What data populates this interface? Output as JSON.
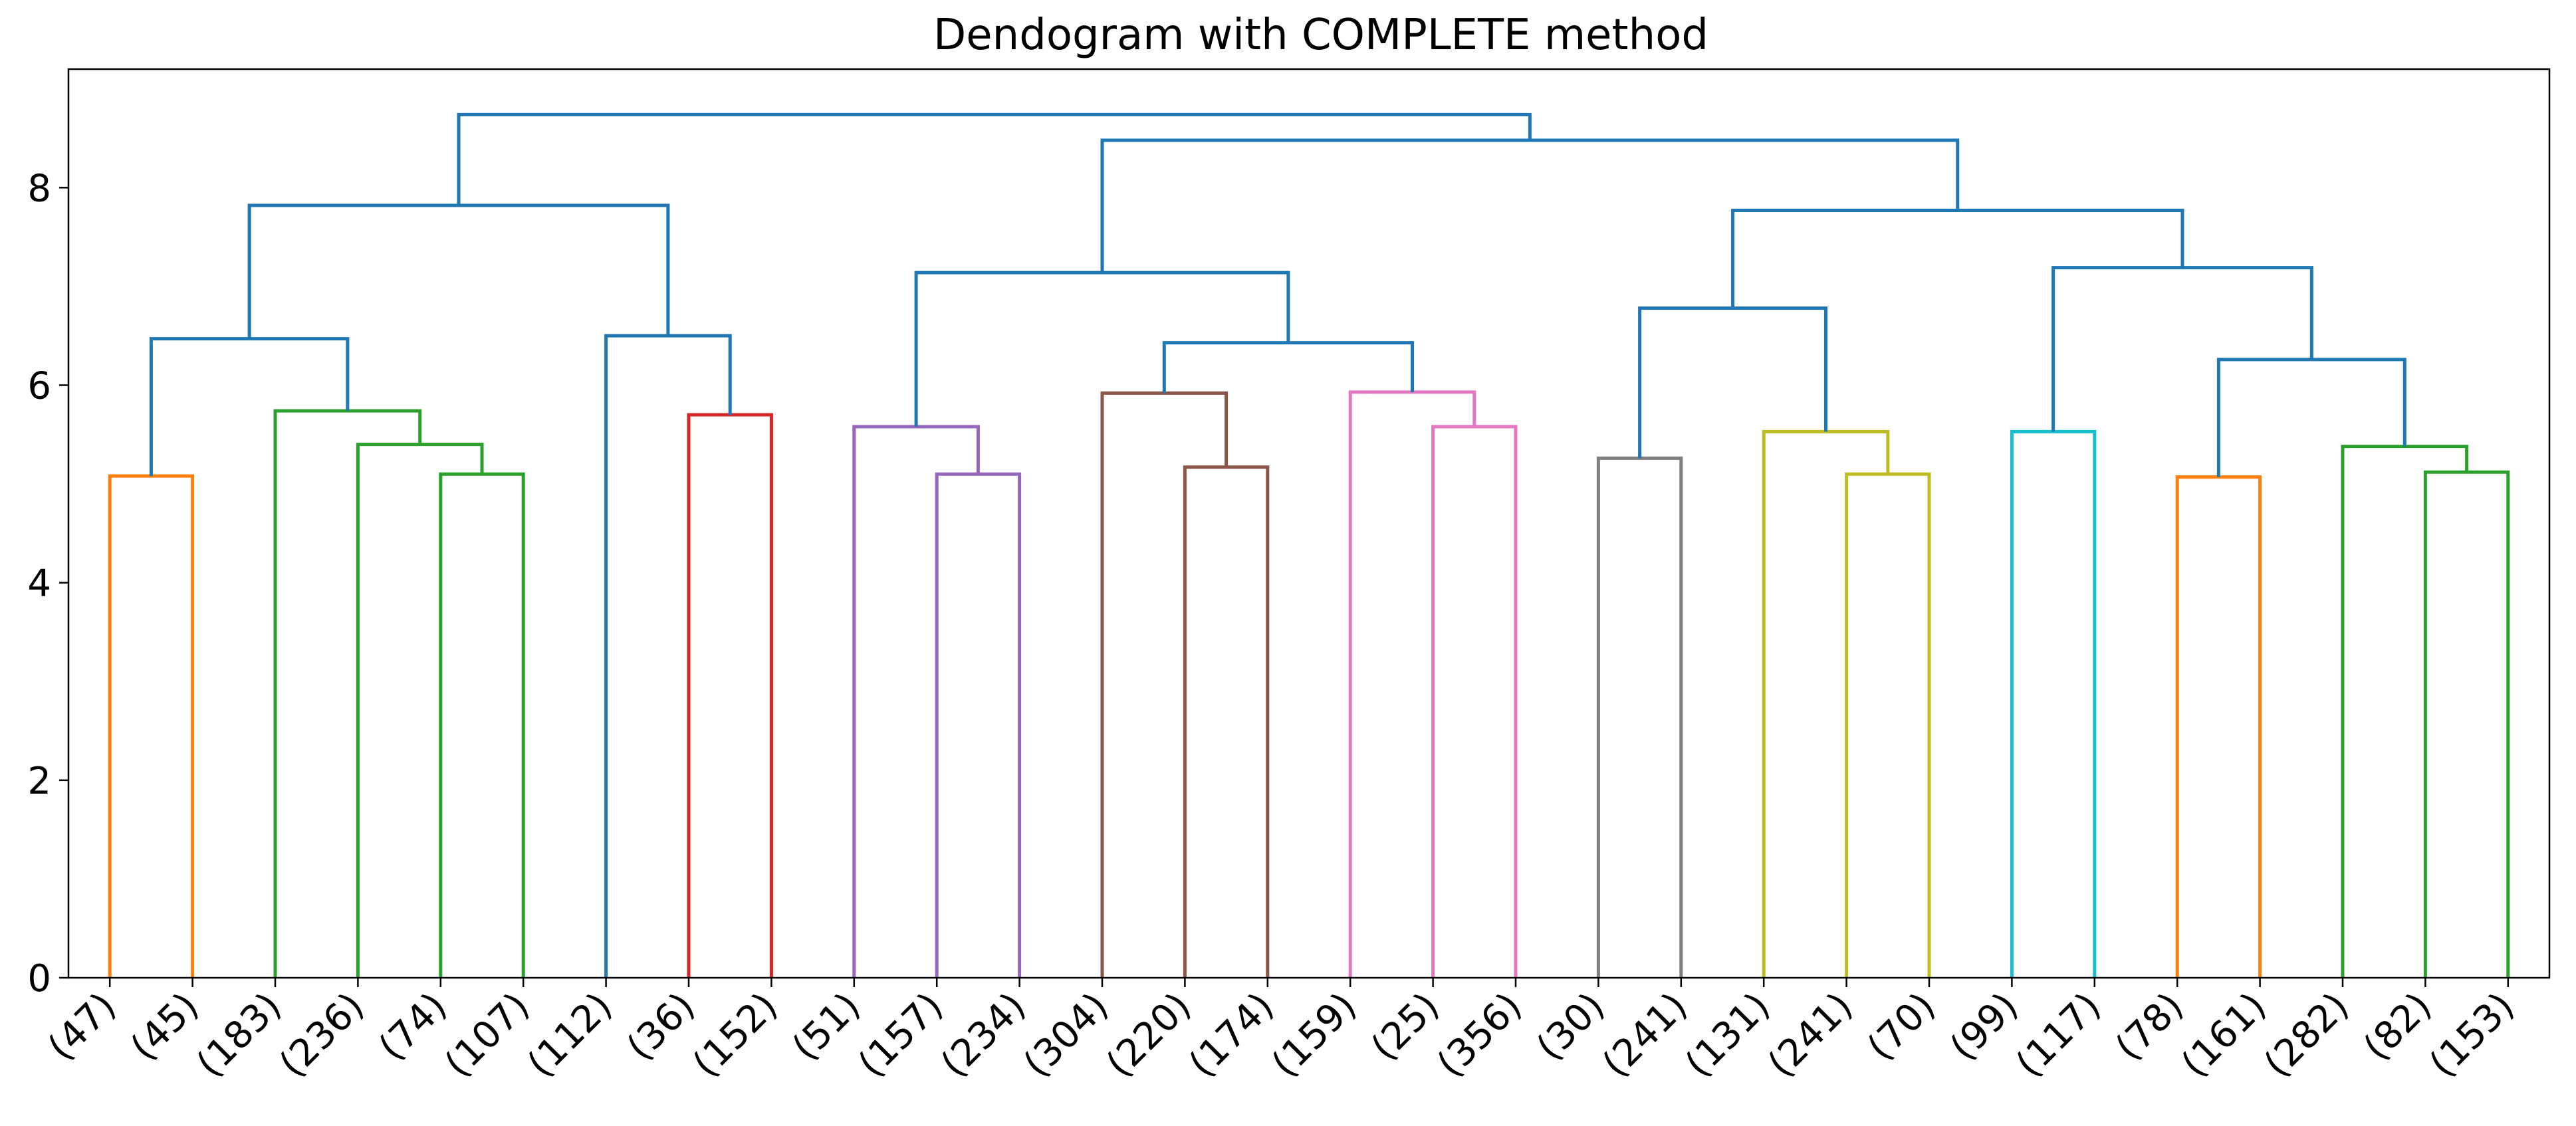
{
  "chart_data": {
    "type": "dendrogram",
    "title": "Dendogram with COMPLETE method",
    "xlabel": "",
    "ylabel": "",
    "ylim": [
      0,
      9.2
    ],
    "yticks": [
      0,
      2,
      4,
      6,
      8
    ],
    "grid": false,
    "leaf_labels": [
      "(47)",
      "(45)",
      "(183)",
      "(236)",
      "(74)",
      "(107)",
      "(112)",
      "(36)",
      "(152)",
      "(51)",
      "(157)",
      "(234)",
      "(304)",
      "(220)",
      "(174)",
      "(159)",
      "(25)",
      "(356)",
      "(30)",
      "(241)",
      "(131)",
      "(241)",
      "(70)",
      "(99)",
      "(117)",
      "(78)",
      "(161)",
      "(282)",
      "(82)",
      "(153)"
    ],
    "merges": [
      {
        "id": "m1",
        "left": 0,
        "right": 1,
        "height": 5.08,
        "color": "#ff7f0e"
      },
      {
        "id": "m2",
        "left": 4,
        "right": 5,
        "height": 5.1,
        "color": "#2ca02c"
      },
      {
        "id": "m3",
        "left": 3,
        "right": "m2",
        "height": 5.4,
        "color": "#2ca02c"
      },
      {
        "id": "m4",
        "left": 2,
        "right": "m3",
        "height": 5.74,
        "color": "#2ca02c"
      },
      {
        "id": "m5",
        "left": "m1",
        "right": "m4",
        "height": 6.47,
        "color": "#1f77b4"
      },
      {
        "id": "m6",
        "left": 7,
        "right": 8,
        "height": 5.7,
        "color": "#d62728"
      },
      {
        "id": "m7",
        "left": 6,
        "right": "m6",
        "height": 6.5,
        "color": "#1f77b4"
      },
      {
        "id": "m8",
        "left": "m5",
        "right": "m7",
        "height": 7.82,
        "color": "#1f77b4"
      },
      {
        "id": "m9",
        "left": 10,
        "right": 11,
        "height": 5.1,
        "color": "#9467bd"
      },
      {
        "id": "m10",
        "left": 9,
        "right": "m9",
        "height": 5.58,
        "color": "#9467bd"
      },
      {
        "id": "m11",
        "left": 13,
        "right": 14,
        "height": 5.17,
        "color": "#8c564b"
      },
      {
        "id": "m12",
        "left": 12,
        "right": "m11",
        "height": 5.92,
        "color": "#8c564b"
      },
      {
        "id": "m13",
        "left": 16,
        "right": 17,
        "height": 5.58,
        "color": "#e377c2"
      },
      {
        "id": "m14",
        "left": 15,
        "right": "m13",
        "height": 5.93,
        "color": "#e377c2"
      },
      {
        "id": "m15",
        "left": "m12",
        "right": "m14",
        "height": 6.43,
        "color": "#1f77b4"
      },
      {
        "id": "m16",
        "left": "m10",
        "right": "m15",
        "height": 7.14,
        "color": "#1f77b4"
      },
      {
        "id": "m17",
        "left": 18,
        "right": 19,
        "height": 5.26,
        "color": "#7f7f7f"
      },
      {
        "id": "m18",
        "left": 21,
        "right": 22,
        "height": 5.1,
        "color": "#bcbd22"
      },
      {
        "id": "m19",
        "left": 20,
        "right": "m18",
        "height": 5.53,
        "color": "#bcbd22"
      },
      {
        "id": "m20",
        "left": "m17",
        "right": "m19",
        "height": 6.78,
        "color": "#1f77b4"
      },
      {
        "id": "m21",
        "left": 23,
        "right": 24,
        "height": 5.53,
        "color": "#17becf"
      },
      {
        "id": "m22",
        "left": 25,
        "right": 26,
        "height": 5.07,
        "color": "#ff7f0e"
      },
      {
        "id": "m23",
        "left": 28,
        "right": 29,
        "height": 5.12,
        "color": "#2ca02c"
      },
      {
        "id": "m24",
        "left": 27,
        "right": "m23",
        "height": 5.38,
        "color": "#2ca02c"
      },
      {
        "id": "m25",
        "left": "m22",
        "right": "m24",
        "height": 6.26,
        "color": "#1f77b4"
      },
      {
        "id": "m26",
        "left": "m21",
        "right": "m25",
        "height": 7.19,
        "color": "#1f77b4"
      },
      {
        "id": "m27",
        "left": "m20",
        "right": "m26",
        "height": 7.77,
        "color": "#1f77b4"
      },
      {
        "id": "m28",
        "left": "m16",
        "right": "m27",
        "height": 8.48,
        "color": "#1f77b4"
      },
      {
        "id": "m29",
        "left": "m8",
        "right": "m28",
        "height": 8.74,
        "color": "#1f77b4"
      }
    ]
  }
}
